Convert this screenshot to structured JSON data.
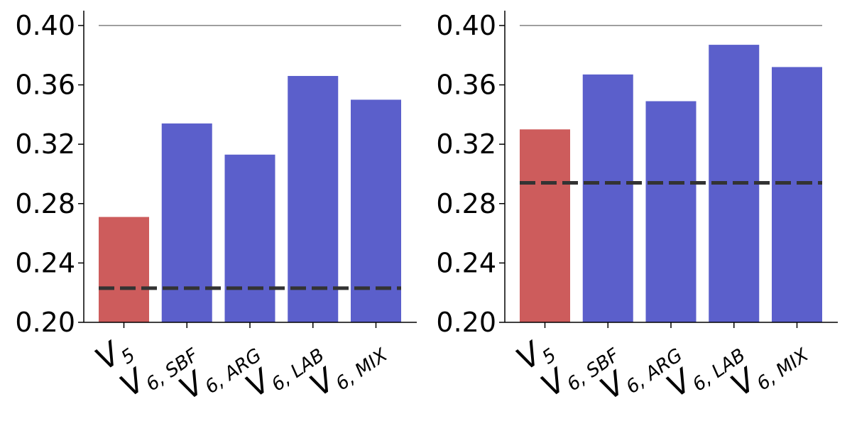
{
  "chart_data": [
    {
      "type": "bar",
      "categories": [
        {
          "main": "V",
          "sub": "5"
        },
        {
          "main": "V",
          "sub": "6, SBF"
        },
        {
          "main": "V",
          "sub": "6, ARG"
        },
        {
          "main": "V",
          "sub": "6, LAB"
        },
        {
          "main": "V",
          "sub": "6, MIX"
        }
      ],
      "values": [
        0.271,
        0.334,
        0.313,
        0.366,
        0.35
      ],
      "bar_colors": [
        "#cd5c5c",
        "#5b5fcb",
        "#5b5fcb",
        "#5b5fcb",
        "#5b5fcb"
      ],
      "baseline": 0.223,
      "reference_line": 0.4,
      "ylim": [
        0.2,
        0.41
      ],
      "yticks": [
        "0.20",
        "0.24",
        "0.28",
        "0.32",
        "0.36",
        "0.40"
      ],
      "grid": false
    },
    {
      "type": "bar",
      "categories": [
        {
          "main": "V",
          "sub": "5"
        },
        {
          "main": "V",
          "sub": "6, SBF"
        },
        {
          "main": "V",
          "sub": "6, ARG"
        },
        {
          "main": "V",
          "sub": "6, LAB"
        },
        {
          "main": "V",
          "sub": "6, MIX"
        }
      ],
      "values": [
        0.33,
        0.367,
        0.349,
        0.387,
        0.372
      ],
      "bar_colors": [
        "#cd5c5c",
        "#5b5fcb",
        "#5b5fcb",
        "#5b5fcb",
        "#5b5fcb"
      ],
      "baseline": 0.294,
      "reference_line": 0.4,
      "ylim": [
        0.2,
        0.41
      ],
      "yticks": [
        "0.20",
        "0.24",
        "0.28",
        "0.32",
        "0.36",
        "0.40"
      ],
      "grid": false
    }
  ],
  "colors": {
    "axis": "#000000",
    "baseline": "#333333",
    "reference": "#808080"
  }
}
